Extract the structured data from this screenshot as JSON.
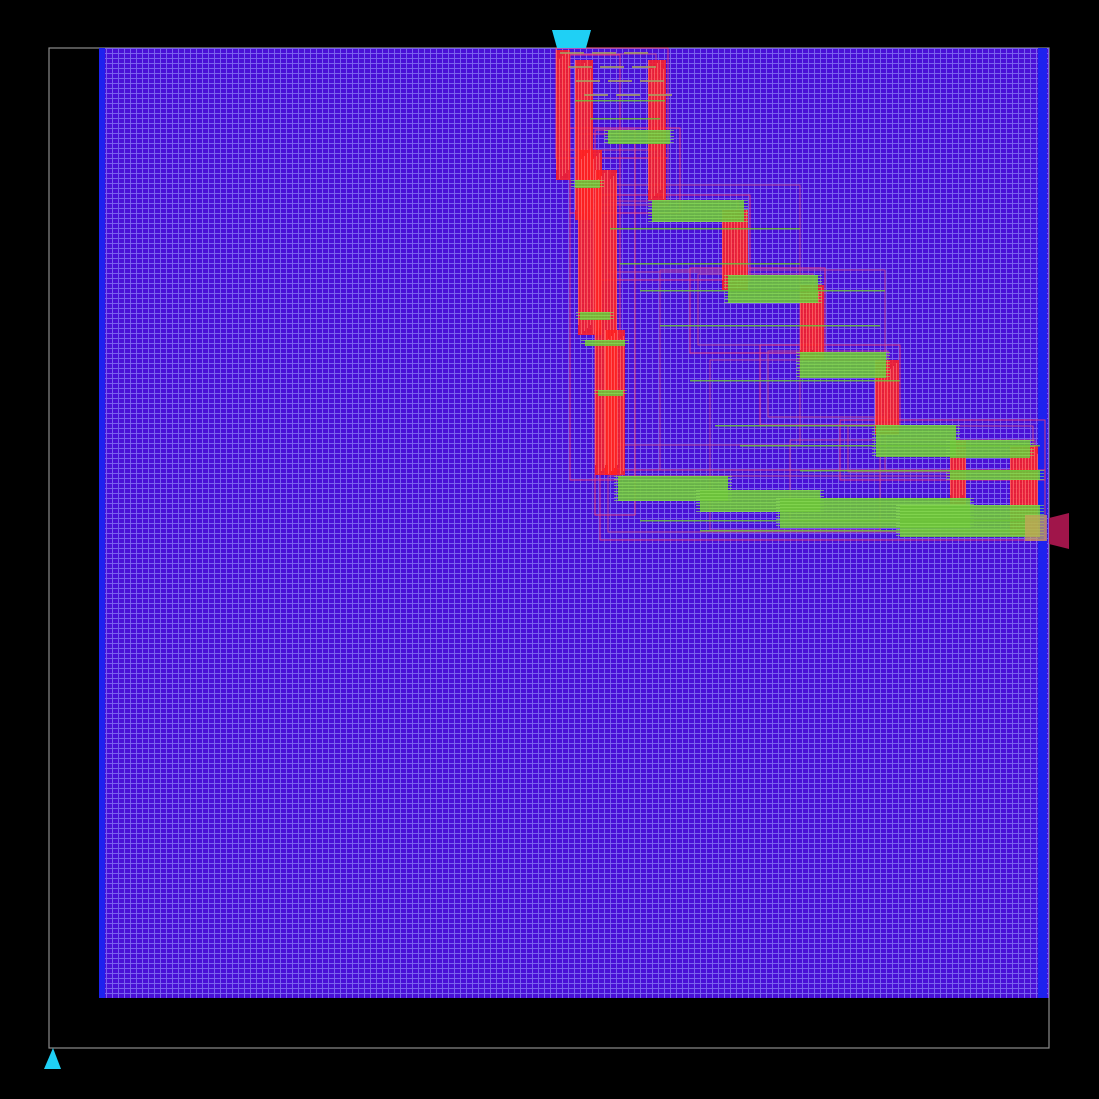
{
  "view": {
    "background": "#000000",
    "die_outline_color": "#8c8c8c"
  },
  "core": {
    "fill_color": "#4a10d6",
    "grid_color": "#8a7cf4",
    "power_rail_color": "#1e22ee"
  },
  "routing": {
    "vertical_wire_color": "#ff2020",
    "horizontal_wire_color": "#6cc23a",
    "connector_color": "#a8a060"
  },
  "pins": [
    {
      "name": "top-pin",
      "color": "#1fd0f5",
      "side": "top",
      "shape": "trapezoid"
    },
    {
      "name": "right-pin",
      "color": "#a0154a",
      "side": "right",
      "shape": "trapezoid"
    },
    {
      "name": "origin-marker",
      "color": "#1fd0f5",
      "side": "bottom-left",
      "shape": "triangle"
    }
  ]
}
